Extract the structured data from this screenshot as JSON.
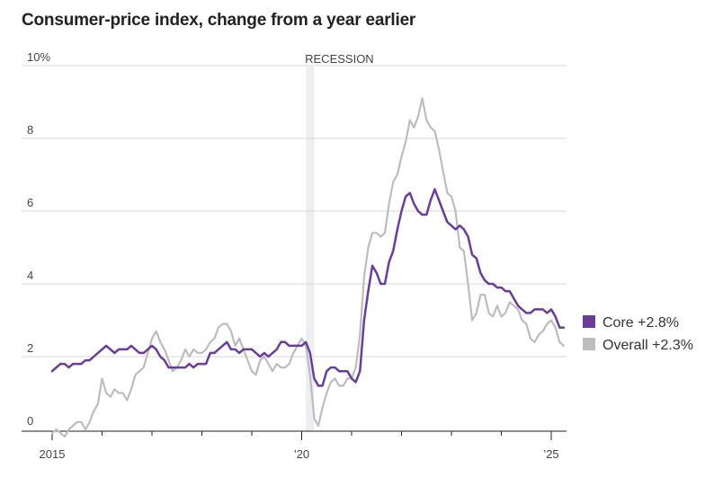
{
  "chart_data": {
    "type": "line",
    "title": "Consumer-price index, change from a year earlier",
    "xlabel": "",
    "ylabel": "",
    "y_ticks": [
      {
        "value": 10,
        "label": "10%"
      },
      {
        "value": 8,
        "label": "8"
      },
      {
        "value": 6,
        "label": "6"
      },
      {
        "value": 4,
        "label": "4"
      },
      {
        "value": 2,
        "label": "2"
      },
      {
        "value": 0,
        "label": "0"
      }
    ],
    "x_tick_labels": [
      {
        "year": 2015,
        "label": "2015"
      },
      {
        "year": 2020,
        "label": "’20"
      },
      {
        "year": 2025,
        "label": "’25"
      }
    ],
    "x_minor_ticks": [
      2015,
      2016,
      2017,
      2018,
      2019,
      2020,
      2021,
      2022,
      2023,
      2024,
      2025
    ],
    "xlim": [
      "2015-01",
      "2025-03"
    ],
    "ylim": [
      -0.3,
      10
    ],
    "grid": true,
    "legend": "right",
    "annotations": [
      {
        "label": "RECESSION",
        "start": "2020-02",
        "end": "2020-04"
      }
    ],
    "series": [
      {
        "name": "Core",
        "legend_label": "Core +2.8%",
        "color": "#6a3d9a",
        "start": "2015-01",
        "values": [
          1.6,
          1.7,
          1.8,
          1.8,
          1.7,
          1.8,
          1.8,
          1.8,
          1.9,
          1.9,
          2.0,
          2.1,
          2.2,
          2.3,
          2.2,
          2.1,
          2.2,
          2.2,
          2.2,
          2.3,
          2.2,
          2.1,
          2.1,
          2.2,
          2.3,
          2.2,
          2.0,
          1.9,
          1.7,
          1.7,
          1.7,
          1.7,
          1.7,
          1.8,
          1.7,
          1.8,
          1.8,
          1.8,
          2.1,
          2.1,
          2.2,
          2.3,
          2.4,
          2.2,
          2.2,
          2.1,
          2.2,
          2.2,
          2.2,
          2.1,
          2.0,
          2.1,
          2.0,
          2.1,
          2.2,
          2.4,
          2.4,
          2.3,
          2.3,
          2.3,
          2.3,
          2.4,
          2.1,
          1.4,
          1.2,
          1.2,
          1.6,
          1.7,
          1.7,
          1.6,
          1.6,
          1.6,
          1.4,
          1.3,
          1.6,
          3.0,
          3.8,
          4.5,
          4.3,
          4.0,
          4.0,
          4.6,
          4.9,
          5.5,
          6.0,
          6.4,
          6.5,
          6.2,
          6.0,
          5.9,
          5.9,
          6.3,
          6.6,
          6.3,
          6.0,
          5.7,
          5.6,
          5.5,
          5.6,
          5.5,
          5.3,
          4.8,
          4.7,
          4.3,
          4.1,
          4.0,
          4.0,
          3.9,
          3.9,
          3.8,
          3.8,
          3.6,
          3.4,
          3.3,
          3.2,
          3.2,
          3.3,
          3.3,
          3.3,
          3.2,
          3.3,
          3.1,
          2.8,
          2.8
        ]
      },
      {
        "name": "Overall",
        "legend_label": "Overall +2.3%",
        "color": "#bdbdbd",
        "start": "2015-01",
        "values": [
          -0.1,
          -0.0,
          -0.1,
          -0.2,
          0.0,
          0.1,
          0.2,
          0.2,
          0.0,
          0.2,
          0.5,
          0.7,
          1.4,
          1.0,
          0.9,
          1.1,
          1.0,
          1.0,
          0.8,
          1.1,
          1.5,
          1.6,
          1.7,
          2.1,
          2.5,
          2.7,
          2.4,
          2.2,
          1.9,
          1.6,
          1.7,
          1.9,
          2.2,
          2.0,
          2.2,
          2.1,
          2.1,
          2.2,
          2.4,
          2.5,
          2.8,
          2.9,
          2.9,
          2.7,
          2.3,
          2.5,
          2.2,
          1.9,
          1.6,
          1.5,
          1.9,
          2.0,
          1.8,
          1.6,
          1.8,
          1.7,
          1.7,
          1.8,
          2.1,
          2.3,
          2.5,
          2.3,
          1.5,
          0.3,
          0.1,
          0.6,
          1.0,
          1.3,
          1.4,
          1.2,
          1.2,
          1.4,
          1.4,
          1.7,
          2.6,
          4.2,
          5.0,
          5.4,
          5.4,
          5.3,
          5.4,
          6.2,
          6.8,
          7.0,
          7.5,
          7.9,
          8.5,
          8.3,
          8.6,
          9.1,
          8.5,
          8.3,
          8.2,
          7.7,
          7.1,
          6.5,
          6.4,
          6.0,
          5.0,
          4.9,
          4.0,
          3.0,
          3.2,
          3.7,
          3.7,
          3.2,
          3.1,
          3.4,
          3.1,
          3.2,
          3.5,
          3.4,
          3.3,
          3.0,
          2.9,
          2.5,
          2.4,
          2.6,
          2.7,
          2.9,
          3.0,
          2.8,
          2.4,
          2.3
        ]
      }
    ]
  }
}
